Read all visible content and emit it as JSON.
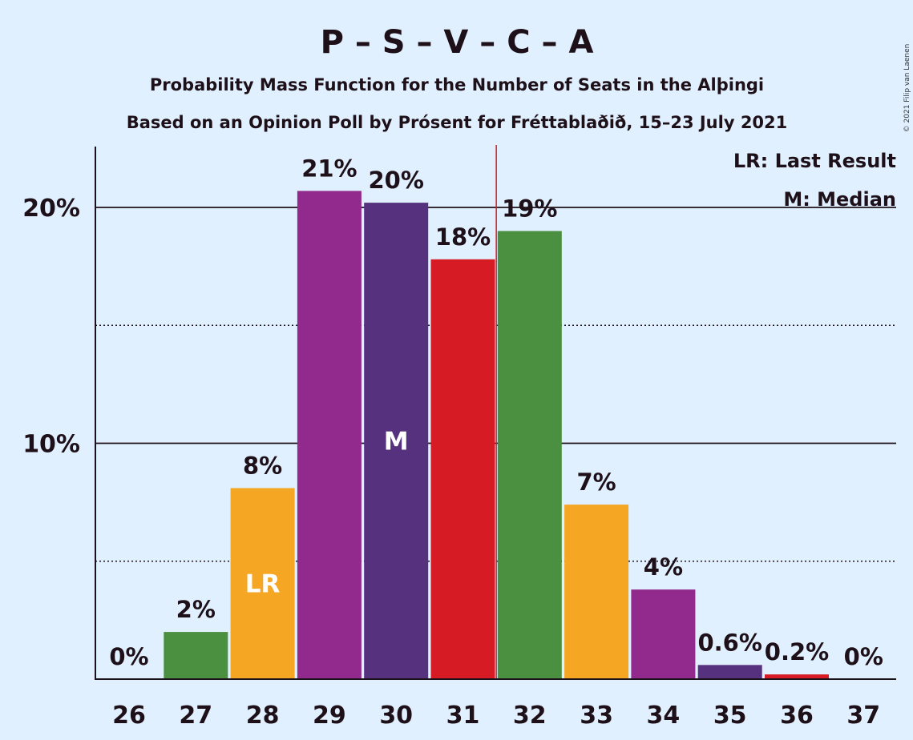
{
  "title": "P – S – V – C – A",
  "subtitle": "Probability Mass Function for the Number of Seats in the Alþingi",
  "subtitle2": "Based on an Opinion Poll by Prósent for Fréttablaðið, 15–23 July 2021",
  "copyright": "© 2021 Filip van Laenen",
  "legend": {
    "last_result": "LR: Last Result",
    "median": "M: Median"
  },
  "chart_data": {
    "type": "bar",
    "categories": [
      "26",
      "27",
      "28",
      "29",
      "30",
      "31",
      "32",
      "33",
      "34",
      "35",
      "36",
      "37"
    ],
    "values": [
      0,
      2.0,
      8.1,
      20.7,
      20.2,
      17.8,
      19.0,
      7.4,
      3.8,
      0.6,
      0.2,
      0
    ],
    "labels": [
      "0%",
      "2%",
      "8%",
      "21%",
      "20%",
      "18%",
      "19%",
      "7%",
      "4%",
      "0.6%",
      "0.2%",
      "0%"
    ],
    "colors": [
      "#4a9040",
      "#4a9040",
      "#f5a623",
      "#912a8c",
      "#56317e",
      "#d71b24",
      "#4a9040",
      "#f5a623",
      "#912a8c",
      "#56317e",
      "#d71b24",
      "#4a9040"
    ],
    "yticks": [
      "10%",
      "20%"
    ],
    "ylim": [
      0,
      22.7
    ],
    "last_result": {
      "category": "28",
      "label": "LR"
    },
    "median": {
      "category": "30",
      "label": "M"
    },
    "majority_line_between": [
      "31",
      "32"
    ],
    "majority_line_color": "#d71b24",
    "grid": true
  }
}
